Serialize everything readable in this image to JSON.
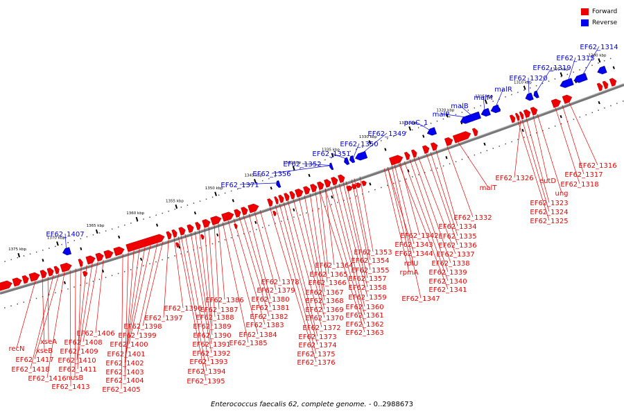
{
  "caption": {
    "organism": "Enterococcus faecalis 62, complete genome.",
    "range": " - 0..2988673"
  },
  "legend": [
    {
      "label": "Forward",
      "color": "#ee0000"
    },
    {
      "label": "Reverse",
      "color": "#0000ee"
    }
  ],
  "colors": {
    "forward": "#ee0000",
    "reverse": "#0000ee",
    "backbone": "#777777",
    "tick": "#000000"
  },
  "scale_ticks": [
    "1300 kbp",
    "1305 kbp",
    "1310 kbp",
    "1315 kbp",
    "1320 kbp",
    "1325 kbp",
    "1330 kbp",
    "1335 kbp",
    "1340 kbp",
    "1345 kbp",
    "1350 kbp",
    "1355 kbp",
    "1360 kbp",
    "1365 kbp",
    "1370 kbp",
    "1375 kbp"
  ],
  "reverse_labels": [
    "EF62_1314",
    "EF62_1315",
    "EF62_1319",
    "EF62_1320",
    "malR",
    "malM",
    "malB",
    "malP",
    "proC_1",
    "EF62_1349",
    "EF62_1350",
    "EF62_1351",
    "EF62_1352",
    "EF62_1356",
    "EF62_1371",
    "EF62_1407"
  ],
  "forward_labels": [
    "EF62_1316",
    "EF62_1317",
    "EF62_1318",
    "ung",
    "eutD",
    "EF62_1326",
    "EF62_1323",
    "EF62_1324",
    "EF62_1325",
    "malT",
    "EF62_1332",
    "EF62_1334",
    "EF62_1335",
    "EF62_1336",
    "EF62_1337",
    "EF62_1338",
    "EF62_1339",
    "EF62_1340",
    "EF62_1341",
    "EF62_1342",
    "EF62_1343",
    "EF62_1344",
    "rplU",
    "rpmA",
    "EF62_1347",
    "EF62_1353",
    "EF62_1354",
    "EF62_1355",
    "EF62_1357",
    "EF62_1358",
    "EF62_1359",
    "EF62_1360",
    "EF62_1361",
    "EF62_1362",
    "EF62_1363",
    "EF62_1364",
    "EF62_1365",
    "EF62_1366",
    "EF62_1367",
    "EF62_1368",
    "EF62_1369",
    "EF62_1370",
    "EF62_1372",
    "EF62_1373",
    "EF62_1374",
    "EF62_1375",
    "EF62_1376",
    "EF62_1378",
    "EF62_1379",
    "EF62_1380",
    "EF62_1381",
    "EF62_1382",
    "EF62_1383",
    "EF62_1384",
    "EF62_1385",
    "EF62_1386",
    "EF62_1387",
    "EF62_1388",
    "EF62_1389",
    "EF62_1390",
    "EF62_1391",
    "EF62_1392",
    "EF62_1393",
    "EF62_1394",
    "EF62_1395",
    "EF62_1396",
    "EF62_1397",
    "EF62_1398",
    "EF62_1399",
    "EF62_1400",
    "EF62_1401",
    "EF62_1402",
    "EF62_1403",
    "EF62_1404",
    "EF62_1405",
    "EF62_1406",
    "EF62_1408",
    "EF62_1409",
    "EF62_1410",
    "EF62_1411",
    "nusB",
    "EF62_1413",
    "EF62_1416",
    "EF62_1417",
    "EF62_1418",
    "xseA",
    "xseB",
    "recN"
  ]
}
